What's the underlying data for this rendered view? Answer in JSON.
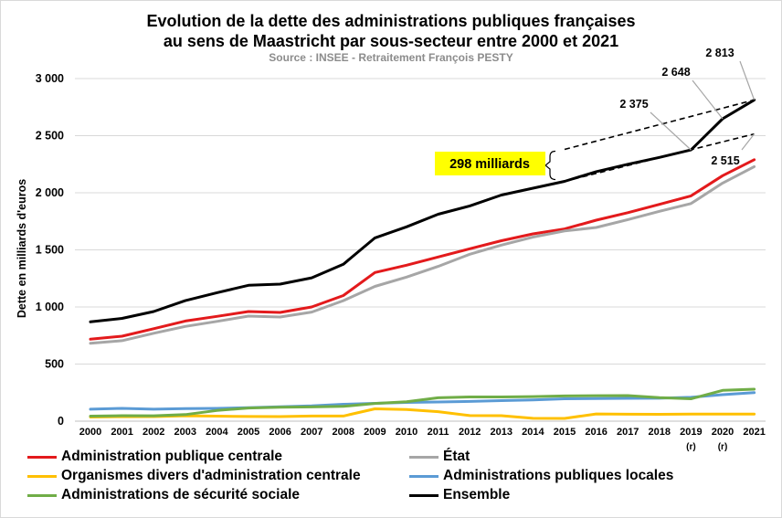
{
  "chart_data": {
    "type": "line",
    "title_line1": "Evolution de la dette des administrations publiques françaises",
    "title_line2": "au sens de Maastricht par sous-secteur entre 2000 et 2021",
    "subtitle": "Source : INSEE - Retraitement François PESTY",
    "xlabel": "",
    "ylabel": "Dette en milliards d'euros",
    "ylim": [
      0,
      3000
    ],
    "yticks": [
      0,
      500,
      1000,
      1500,
      2000,
      2500,
      3000
    ],
    "ytick_labels": [
      "0",
      "500",
      "1 000",
      "1 500",
      "2 000",
      "2 500",
      "3 000"
    ],
    "grid": true,
    "legend_position": "bottom",
    "categories": [
      "2000",
      "2001",
      "2002",
      "2003",
      "2004",
      "2005",
      "2006",
      "2007",
      "2008",
      "2009",
      "2010",
      "2011",
      "2012",
      "2013",
      "2014",
      "2015",
      "2016",
      "2017",
      "2018",
      "2019",
      "2020",
      "2021"
    ],
    "category_notes": {
      "2019": "(r)",
      "2020": "(r)"
    },
    "series": [
      {
        "name": "Administration publique centrale",
        "color": "#e31a1c",
        "values": [
          718,
          744,
          810,
          877,
          918,
          960,
          952,
          1000,
          1100,
          1302,
          1366,
          1438,
          1510,
          1580,
          1640,
          1683,
          1760,
          1826,
          1898,
          1973,
          2150,
          2290
        ]
      },
      {
        "name": "État",
        "color": "#a6a6a6",
        "values": [
          682,
          705,
          770,
          830,
          874,
          920,
          912,
          955,
          1055,
          1180,
          1262,
          1355,
          1462,
          1542,
          1612,
          1666,
          1696,
          1765,
          1838,
          1906,
          2085,
          2229
        ]
      },
      {
        "name": "Organismes divers d'administration centrale",
        "color": "#ffc000",
        "values": [
          36,
          39,
          40,
          47,
          44,
          41,
          40,
          45,
          45,
          108,
          102,
          83,
          49,
          48,
          25,
          24,
          63,
          61,
          60,
          62,
          62,
          62
        ]
      },
      {
        "name": "Administrations publiques locales",
        "color": "#5b9bd5",
        "values": [
          105,
          112,
          105,
          110,
          112,
          118,
          126,
          134,
          148,
          156,
          164,
          168,
          173,
          180,
          186,
          196,
          198,
          200,
          201,
          209,
          232,
          250
        ]
      },
      {
        "name": "Administrations de sécurité sociale",
        "color": "#70ad47",
        "values": [
          44,
          48,
          47,
          58,
          94,
          115,
          122,
          125,
          130,
          155,
          170,
          205,
          212,
          212,
          215,
          221,
          223,
          224,
          206,
          196,
          270,
          280
        ]
      },
      {
        "name": "Ensemble",
        "color": "#000000",
        "values": [
          870,
          900,
          960,
          1055,
          1125,
          1190,
          1200,
          1255,
          1374,
          1605,
          1702,
          1812,
          1885,
          1980,
          2040,
          2100,
          2185,
          2250,
          2310,
          2375,
          2648,
          2813
        ]
      }
    ],
    "annotations": {
      "labels": [
        {
          "text": "2 813",
          "year": "2021",
          "value": 2813
        },
        {
          "text": "2 648",
          "year": "2020",
          "value": 2648
        },
        {
          "text": "2 375",
          "year": "2019",
          "value": 2375
        },
        {
          "text": "2 515",
          "year": "2021",
          "value": 2515
        }
      ],
      "callout": "298 milliards",
      "callout_color": "#ffff00",
      "trend_lines": [
        {
          "from_year": "2015",
          "from_value": 2380,
          "to_year": "2021",
          "to_value": 2813
        },
        {
          "from_year": "2015",
          "from_value": 2100,
          "to_year": "2021",
          "to_value": 2515
        }
      ]
    }
  }
}
